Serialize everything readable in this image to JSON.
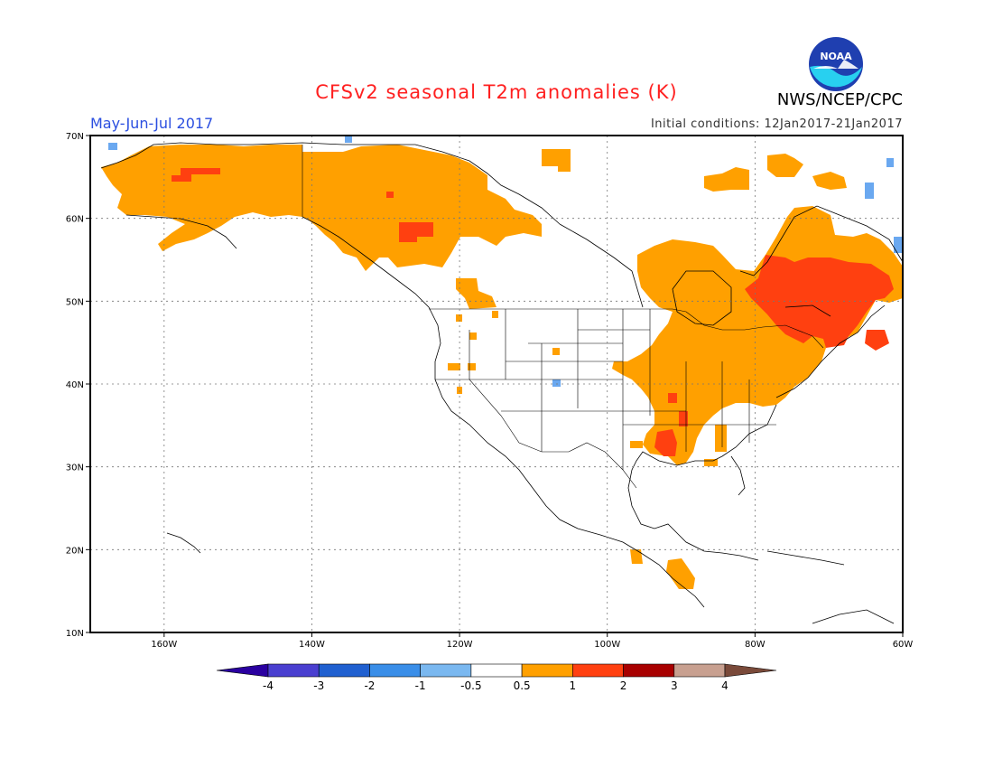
{
  "header": {
    "title": "CFSv2 seasonal T2m anomalies (K)",
    "period": "May-Jun-Jul 2017",
    "initial_conditions": "Initial conditions: 12Jan2017-21Jan2017",
    "agency": "NWS/NCEP/CPC",
    "logo_text": "NOAA"
  },
  "axes": {
    "lat_labels": [
      "70N",
      "60N",
      "50N",
      "40N",
      "30N",
      "20N",
      "10N"
    ],
    "lon_labels": [
      "160W",
      "140W",
      "120W",
      "100W",
      "80W",
      "60W"
    ],
    "extent": {
      "lon_min": -170,
      "lon_max": -60,
      "lat_min": 10,
      "lat_max": 70
    }
  },
  "colorbar": {
    "labels": [
      "-4",
      "-3",
      "-2",
      "-1",
      "-0.5",
      "0.5",
      "1",
      "2",
      "3",
      "4"
    ],
    "colors": [
      "#2a00a0",
      "#4a3fd0",
      "#2060d0",
      "#3a8ee8",
      "#7ab8f0",
      "#ffffff",
      "#ffa000",
      "#ff4010",
      "#a80000",
      "#c8a090",
      "#7a4a3a"
    ]
  },
  "anomaly_colors": {
    "pos1": "#ffa000",
    "pos2": "#ff4010",
    "neg1": "#6aa8f0"
  }
}
